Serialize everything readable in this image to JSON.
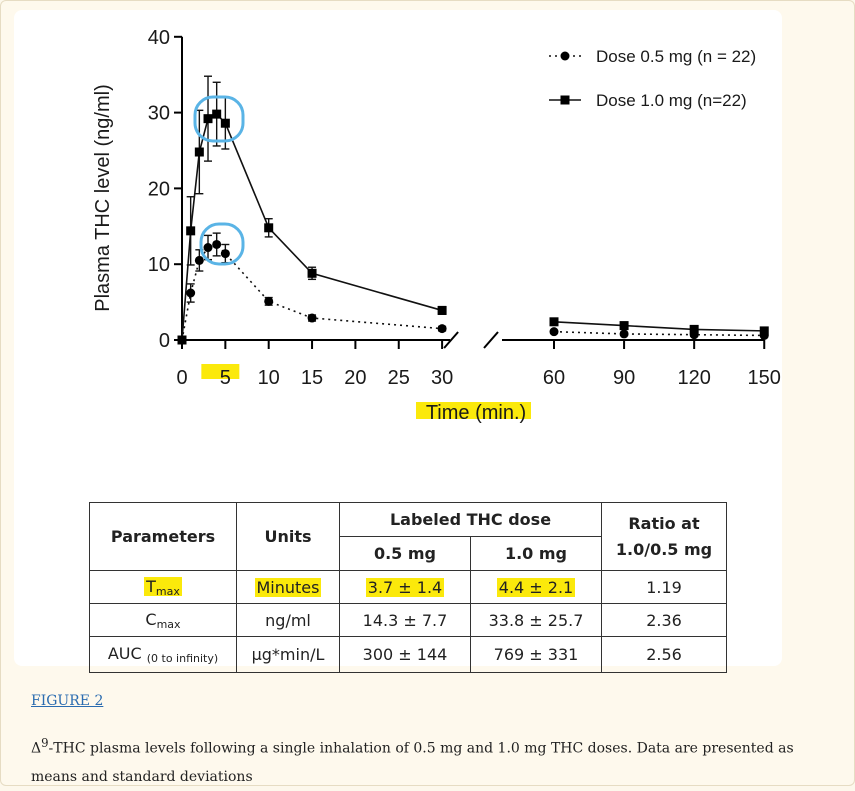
{
  "chart_data": {
    "type": "line",
    "ylabel": "Plasma THC level (ng/ml)",
    "xlabel": "Time (min.)",
    "x_ticks": [
      0,
      5,
      10,
      15,
      20,
      25,
      30,
      60,
      90,
      120,
      150
    ],
    "y_ticks": [
      0,
      10,
      20,
      30,
      40
    ],
    "xlim": [
      0,
      150
    ],
    "ylim": [
      0,
      40
    ],
    "x_axis_break": [
      30,
      60
    ],
    "legend_position": "top-right",
    "series": [
      {
        "name": "Dose 0.5 mg (n = 22)",
        "marker": "circle",
        "line_style": "dotted",
        "x": [
          0,
          1,
          2,
          3,
          4,
          5,
          10,
          15,
          30,
          60,
          90,
          120,
          150
        ],
        "y": [
          0,
          6.2,
          10.5,
          12.2,
          12.6,
          11.4,
          5.1,
          2.9,
          1.5,
          1.1,
          0.8,
          0.7,
          0.6
        ],
        "err": [
          0,
          1.2,
          1.4,
          1.6,
          1.5,
          1.2,
          0.5,
          0.4,
          0.3,
          0.2,
          0.2,
          0.2,
          0.2
        ]
      },
      {
        "name": "Dose 1.0 mg (n=22)",
        "marker": "square",
        "line_style": "solid",
        "x": [
          0,
          1,
          2,
          3,
          4,
          5,
          10,
          15,
          30,
          60,
          90,
          120,
          150
        ],
        "y": [
          0,
          14.4,
          24.8,
          29.2,
          29.8,
          28.6,
          14.8,
          8.8,
          3.9,
          2.4,
          1.9,
          1.4,
          1.2
        ],
        "err": [
          0,
          4.5,
          5.5,
          5.6,
          4.2,
          3.4,
          1.2,
          0.8,
          0.5,
          0.4,
          0.3,
          0.3,
          0.3
        ]
      }
    ],
    "annotations": [
      "circle around Cmax of 1.0 mg dose",
      "circle around Cmax of 0.5 mg dose"
    ],
    "highlight_color": "#fbe90b",
    "circle_color": "#5ab4e6"
  },
  "table": {
    "header": {
      "parameters": "Parameters",
      "units": "Units",
      "labeled_dose": "Labeled THC dose",
      "dose_05": "0.5 mg",
      "dose_10": "1.0 mg",
      "ratio": "Ratio at 1.0/0.5 mg"
    },
    "rows": [
      {
        "param": "T",
        "param_sub": "max",
        "unit": "Minutes",
        "v05": "3.7 ± 1.4",
        "v10": "4.4 ± 2.1",
        "ratio": "1.19"
      },
      {
        "param": "C",
        "param_sub": "max",
        "unit": "ng/ml",
        "v05": "14.3 ± 7.7",
        "v10": "33.8 ± 25.7",
        "ratio": "2.36"
      },
      {
        "param": "AUC",
        "param_sub": "(0 to infinity)",
        "unit": "µg*min/L",
        "v05": "300 ± 144",
        "v10": "769 ± 331",
        "ratio": "2.56"
      }
    ]
  },
  "figure": {
    "link_label": "FIGURE 2",
    "caption_prefix": "Δ",
    "caption_sup": "9",
    "caption_text": "-THC plasma levels following a single inhalation of 0.5 mg and 1.0 mg THC doses. Data are presented as means and standard deviations"
  }
}
